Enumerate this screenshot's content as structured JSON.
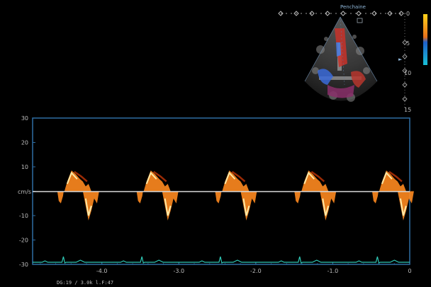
{
  "image_header": {
    "preset_label": "Penchaine",
    "depth_scale_labels": [
      "0",
      "5",
      "10",
      "15"
    ],
    "depth_scale_marker": "►"
  },
  "spectral_panel": {
    "velocity_unit": "cm/s",
    "velocity_ticks": [
      30,
      20,
      10,
      0,
      -10,
      -20,
      -30
    ],
    "time_ticks": [
      "-4.0",
      "-3.0",
      "-2.0",
      "-1.0",
      "0"
    ],
    "border_color": "#2f6da3",
    "baseline_color": "#d9d9d9",
    "ecg_color": "#2fc9b6",
    "doppler_color_bright": "#ffe9a6",
    "doppler_color_mid": "#ff8a1f",
    "doppler_color_dark": "#9a2a05"
  },
  "status_line": {
    "text": "DG:19  / 3.0k  l.F:47"
  },
  "color_bar": {
    "top_color": "#ffd21a",
    "upper_color": "#e8701a",
    "lower_color": "#1f5fc9",
    "bottom_color": "#18c0d6"
  }
}
